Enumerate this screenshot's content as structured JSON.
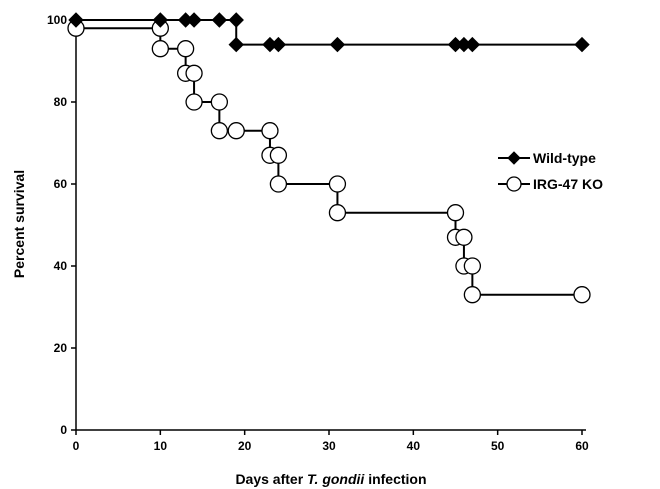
{
  "chart_data": {
    "type": "line",
    "step": true,
    "xlabel_parts": [
      {
        "text": "Days after ",
        "italic": false
      },
      {
        "text": "T. gondii",
        "italic": true
      },
      {
        "text": " infection",
        "italic": false
      }
    ],
    "ylabel": "Percent survival",
    "xlim": [
      0,
      60
    ],
    "ylim": [
      0,
      100
    ],
    "xticks": [
      0,
      10,
      20,
      30,
      40,
      50,
      60
    ],
    "yticks": [
      0,
      20,
      40,
      60,
      80,
      100
    ],
    "grid": false,
    "legend_position": "right",
    "series": [
      {
        "name": "Wild-type",
        "marker": "filled-diamond",
        "color": "#000000",
        "points": [
          {
            "x": 0,
            "y": 100
          },
          {
            "x": 10,
            "y": 100
          },
          {
            "x": 13,
            "y": 100
          },
          {
            "x": 14,
            "y": 100
          },
          {
            "x": 17,
            "y": 100
          },
          {
            "x": 19,
            "y": 100
          },
          {
            "x": 19,
            "y": 94
          },
          {
            "x": 23,
            "y": 94
          },
          {
            "x": 24,
            "y": 94
          },
          {
            "x": 31,
            "y": 94
          },
          {
            "x": 45,
            "y": 94
          },
          {
            "x": 46,
            "y": 94
          },
          {
            "x": 47,
            "y": 94
          },
          {
            "x": 60,
            "y": 94
          }
        ]
      },
      {
        "name": "IRG-47 KO",
        "marker": "open-circle",
        "color": "#000000",
        "points": [
          {
            "x": 0,
            "y": 98
          },
          {
            "x": 10,
            "y": 98
          },
          {
            "x": 10,
            "y": 93
          },
          {
            "x": 13,
            "y": 93
          },
          {
            "x": 13,
            "y": 87
          },
          {
            "x": 14,
            "y": 87
          },
          {
            "x": 14,
            "y": 80
          },
          {
            "x": 17,
            "y": 80
          },
          {
            "x": 17,
            "y": 73
          },
          {
            "x": 19,
            "y": 73
          },
          {
            "x": 23,
            "y": 73
          },
          {
            "x": 23,
            "y": 67
          },
          {
            "x": 24,
            "y": 67
          },
          {
            "x": 24,
            "y": 60
          },
          {
            "x": 31,
            "y": 60
          },
          {
            "x": 31,
            "y": 53
          },
          {
            "x": 45,
            "y": 53
          },
          {
            "x": 45,
            "y": 47
          },
          {
            "x": 46,
            "y": 47
          },
          {
            "x": 46,
            "y": 40
          },
          {
            "x": 47,
            "y": 40
          },
          {
            "x": 47,
            "y": 33
          },
          {
            "x": 60,
            "y": 33
          }
        ]
      }
    ]
  }
}
